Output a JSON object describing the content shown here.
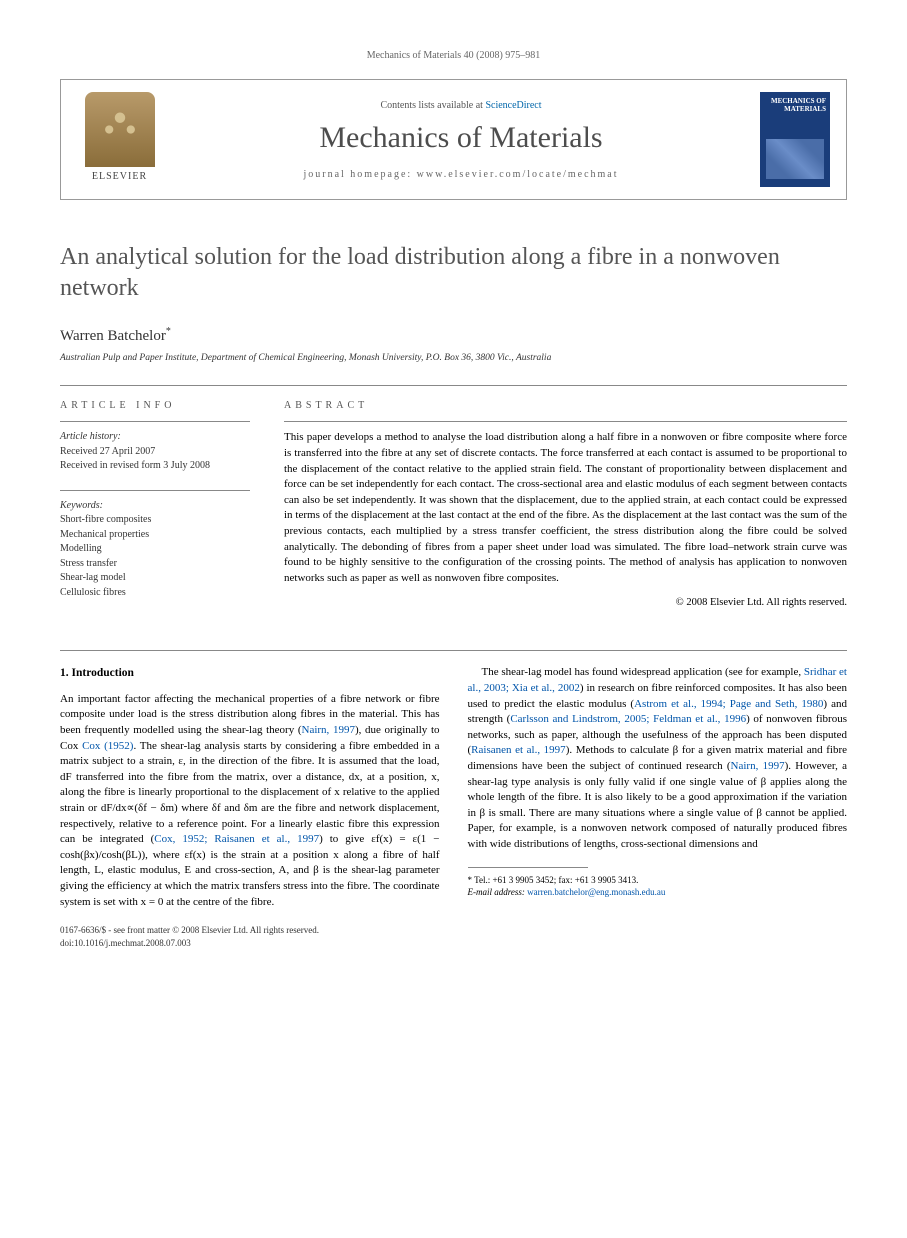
{
  "header": {
    "running_head": "Mechanics of Materials 40 (2008) 975–981"
  },
  "masthead": {
    "publisher": "ELSEVIER",
    "contents_prefix": "Contents lists available at ",
    "contents_link": "ScienceDirect",
    "journal": "Mechanics of Materials",
    "homepage_prefix": "journal homepage: ",
    "homepage": "www.elsevier.com/locate/mechmat",
    "cover_title": "MECHANICS OF MATERIALS"
  },
  "title": "An analytical solution for the load distribution along a fibre in a nonwoven network",
  "author": {
    "name": "Warren Batchelor",
    "marker": "*"
  },
  "affiliation": "Australian Pulp and Paper Institute, Department of Chemical Engineering, Monash University, P.O. Box 36, 3800 Vic., Australia",
  "article_info": {
    "heading": "ARTICLE INFO",
    "history_label": "Article history:",
    "received": "Received 27 April 2007",
    "revised": "Received in revised form 3 July 2008",
    "keywords_label": "Keywords:",
    "keywords": [
      "Short-fibre composites",
      "Mechanical properties",
      "Modelling",
      "Stress transfer",
      "Shear-lag model",
      "Cellulosic fibres"
    ]
  },
  "abstract": {
    "heading": "ABSTRACT",
    "text": "This paper develops a method to analyse the load distribution along a half fibre in a nonwoven or fibre composite where force is transferred into the fibre at any set of discrete contacts. The force transferred at each contact is assumed to be proportional to the displacement of the contact relative to the applied strain field. The constant of proportionality between displacement and force can be set independently for each contact. The cross-sectional area and elastic modulus of each segment between contacts can also be set independently. It was shown that the displacement, due to the applied strain, at each contact could be expressed in terms of the displacement at the last contact at the end of the fibre. As the displacement at the last contact was the sum of the previous contacts, each multiplied by a stress transfer coefficient, the stress distribution along the fibre could be solved analytically. The debonding of fibres from a paper sheet under load was simulated. The fibre load–network strain curve was found to be highly sensitive to the configuration of the crossing points. The method of analysis has application to nonwoven networks such as paper as well as nonwoven fibre composites.",
    "copyright": "© 2008 Elsevier Ltd. All rights reserved."
  },
  "intro": {
    "heading": "1. Introduction",
    "para1_a": "An important factor affecting the mechanical properties of a fibre network or fibre composite under load is the stress distribution along fibres in the material. This has been frequently modelled using the shear-lag theory (",
    "ref1": "Nairn, 1997",
    "para1_b": "), due originally to Cox ",
    "ref2": "Cox (1952)",
    "para1_c": ". The shear-lag analysis starts by considering a fibre embedded in a matrix subject to a strain, ε, in the direction of the fibre. It is assumed that the load, dF transferred into the fibre from the matrix, over a distance, dx, at a position, x, along the fibre is linearly proportional to the displacement of x relative to the applied strain or dF/dx∝(δf − δm) where δf and δm are the fibre and network displacement, respectively, relative to a reference point. For a linearly elastic fibre this expression can be integrated (",
    "ref3": "Cox, 1952; Raisanen et al., 1997",
    "para1_d": ") to give εf(x) = ε(1 − cosh(βx)/cosh(βL)), where εf(x) is the strain at a position x along a fibre of half length, ",
    "para2_a": "L, elastic modulus, E and cross-section, A, and β is the shear-lag parameter giving the efficiency at which the matrix transfers stress into the fibre. The coordinate system is set with x = 0 at the centre of the fibre.",
    "para3_a": "The shear-lag model has found widespread application (see for example, ",
    "ref4": "Sridhar et al., 2003; Xia et al., 2002",
    "para3_b": ") in research on fibre reinforced composites. It has also been used to predict the elastic modulus (",
    "ref5": "Astrom et al., 1994; Page and Seth, 1980",
    "para3_c": ") and strength (",
    "ref6": "Carlsson and Lindstrom, 2005; Feldman et al., 1996",
    "para3_d": ") of nonwoven fibrous networks, such as paper, although the usefulness of the approach has been disputed (",
    "ref7": "Raisanen et al., 1997",
    "para3_e": "). Methods to calculate β for a given matrix material and fibre dimensions have been the subject of continued research (",
    "ref8": "Nairn, 1997",
    "para3_f": "). However, a shear-lag type analysis is only fully valid if one single value of β applies along the whole length of the fibre. It is also likely to be a good approximation if the variation in β is small. There are many situations where a single value of β cannot be applied. Paper, for example, is a nonwoven network composed of naturally produced fibres with wide distributions of lengths, cross-sectional dimensions and"
  },
  "footnote": {
    "tel_label": "* Tel.: ",
    "tel": "+61 3 9905 3452",
    "fax_label": "; fax: ",
    "fax": "+61 3 9905 3413.",
    "email_label": "E-mail address: ",
    "email": "warren.batchelor@eng.monash.edu.au"
  },
  "bottom": {
    "issn": "0167-6636/$ - see front matter © 2008 Elsevier Ltd. All rights reserved.",
    "doi": "doi:10.1016/j.mechmat.2008.07.003"
  }
}
